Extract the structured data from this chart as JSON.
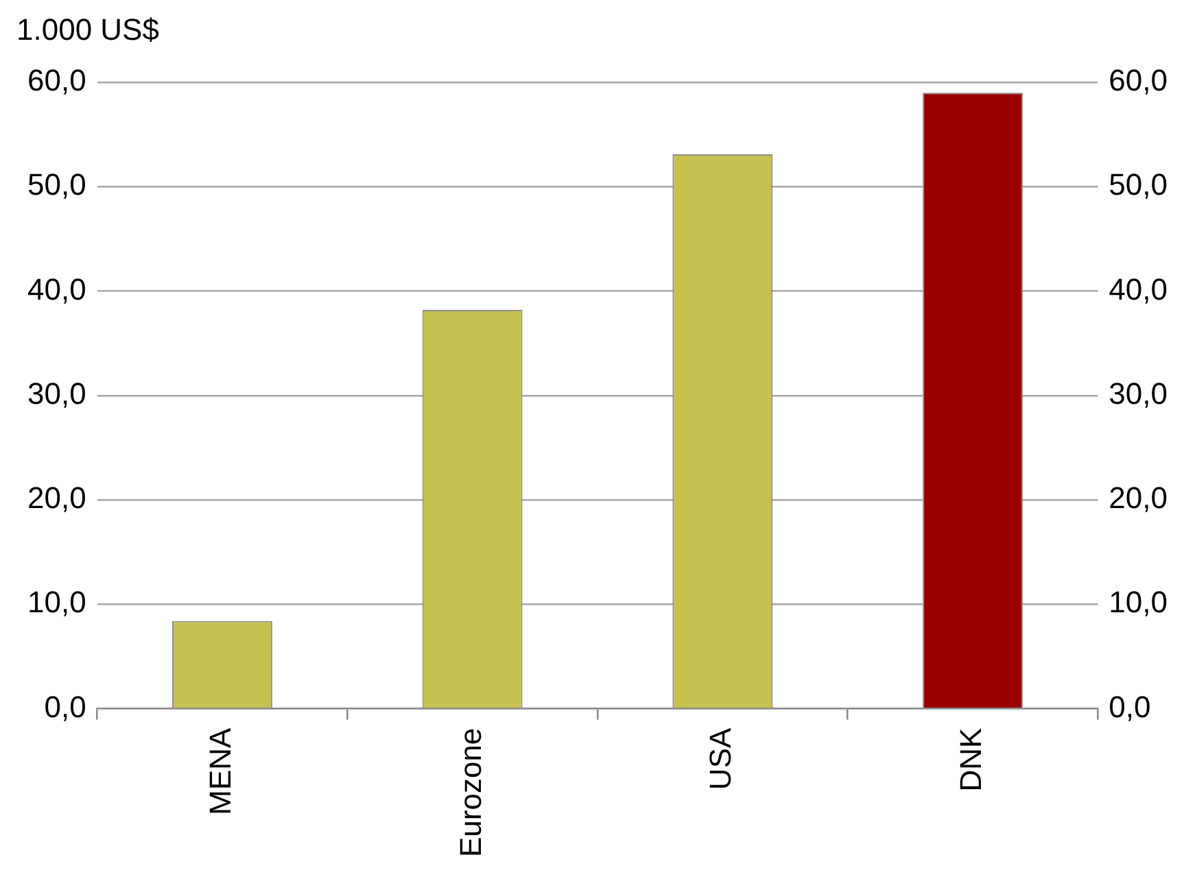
{
  "chart_data": {
    "type": "bar",
    "ylabel": "1.000 US$",
    "categories": [
      "MENA",
      "Eurozone",
      "USA",
      "DNK"
    ],
    "values": [
      8.4,
      38.2,
      53.1,
      59.0
    ],
    "colors": [
      "#c6c250",
      "#c6c250",
      "#c6c250",
      "#990000"
    ],
    "ylim": [
      0,
      60
    ],
    "yticks": [
      {
        "value": 0,
        "label": "0,0"
      },
      {
        "value": 10,
        "label": "10,0"
      },
      {
        "value": 20,
        "label": "20,0"
      },
      {
        "value": 30,
        "label": "30,0"
      },
      {
        "value": 40,
        "label": "40,0"
      },
      {
        "value": 50,
        "label": "50,0"
      },
      {
        "value": 60,
        "label": "60,0"
      }
    ],
    "y2lim": [
      0,
      60
    ],
    "y2ticks": [
      {
        "value": 0,
        "label": "0,0"
      },
      {
        "value": 10,
        "label": "10,0"
      },
      {
        "value": 20,
        "label": "20,0"
      },
      {
        "value": 30,
        "label": "30,0"
      },
      {
        "value": 40,
        "label": "40,0"
      },
      {
        "value": 50,
        "label": "50,0"
      },
      {
        "value": 60,
        "label": "60,0"
      }
    ],
    "grid": "y",
    "legend": false
  }
}
